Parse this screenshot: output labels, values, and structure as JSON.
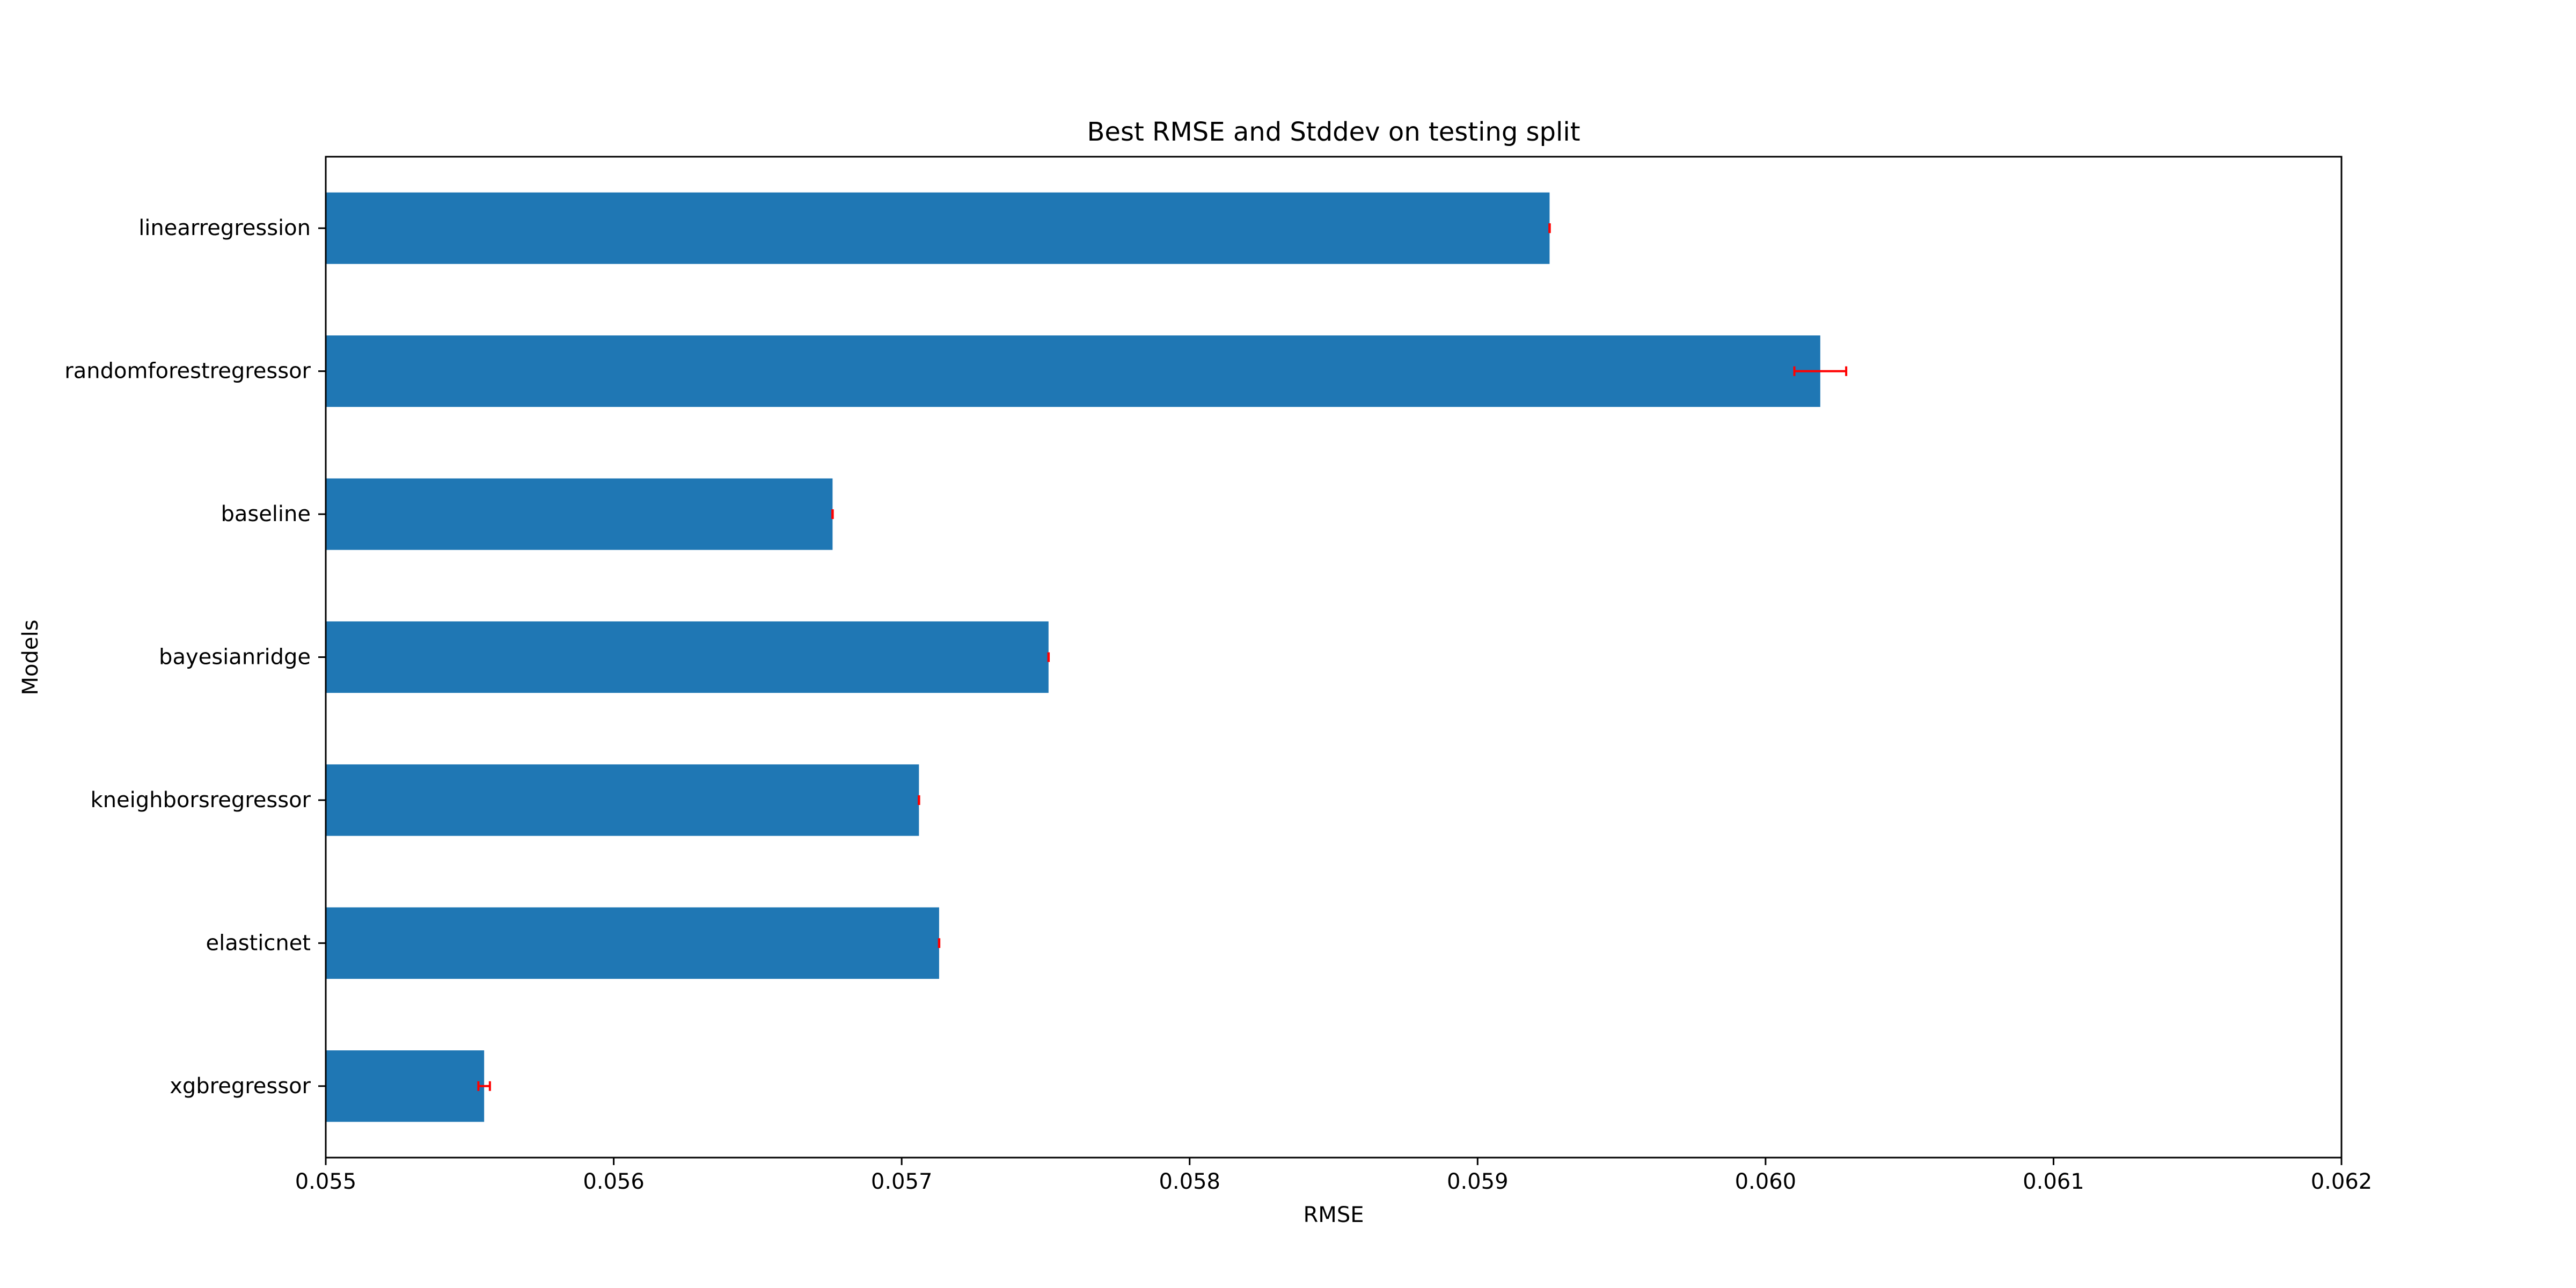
{
  "chart_data": {
    "type": "bar",
    "orientation": "horizontal",
    "title": "Best RMSE and Stddev on testing split",
    "xlabel": "RMSE",
    "ylabel": "Models",
    "xlim": [
      0.055,
      0.062
    ],
    "xticks": [
      "0.055",
      "0.056",
      "0.057",
      "0.058",
      "0.059",
      "0.060",
      "0.061",
      "0.062"
    ],
    "categories": [
      "linearregression",
      "randomforestregressor",
      "baseline",
      "bayesianridge",
      "kneighborsregressor",
      "elasticnet",
      "xgbregressor"
    ],
    "values": [
      0.05925,
      0.06019,
      0.05676,
      0.05751,
      0.05706,
      0.05713,
      0.05555
    ],
    "errors": [
      5e-07,
      9e-05,
      5e-07,
      5e-07,
      5e-07,
      5e-07,
      2e-05
    ],
    "colors": {
      "bar": "#1f77b4",
      "error": "#ff0000",
      "axis": "#000000"
    },
    "grid": false
  }
}
